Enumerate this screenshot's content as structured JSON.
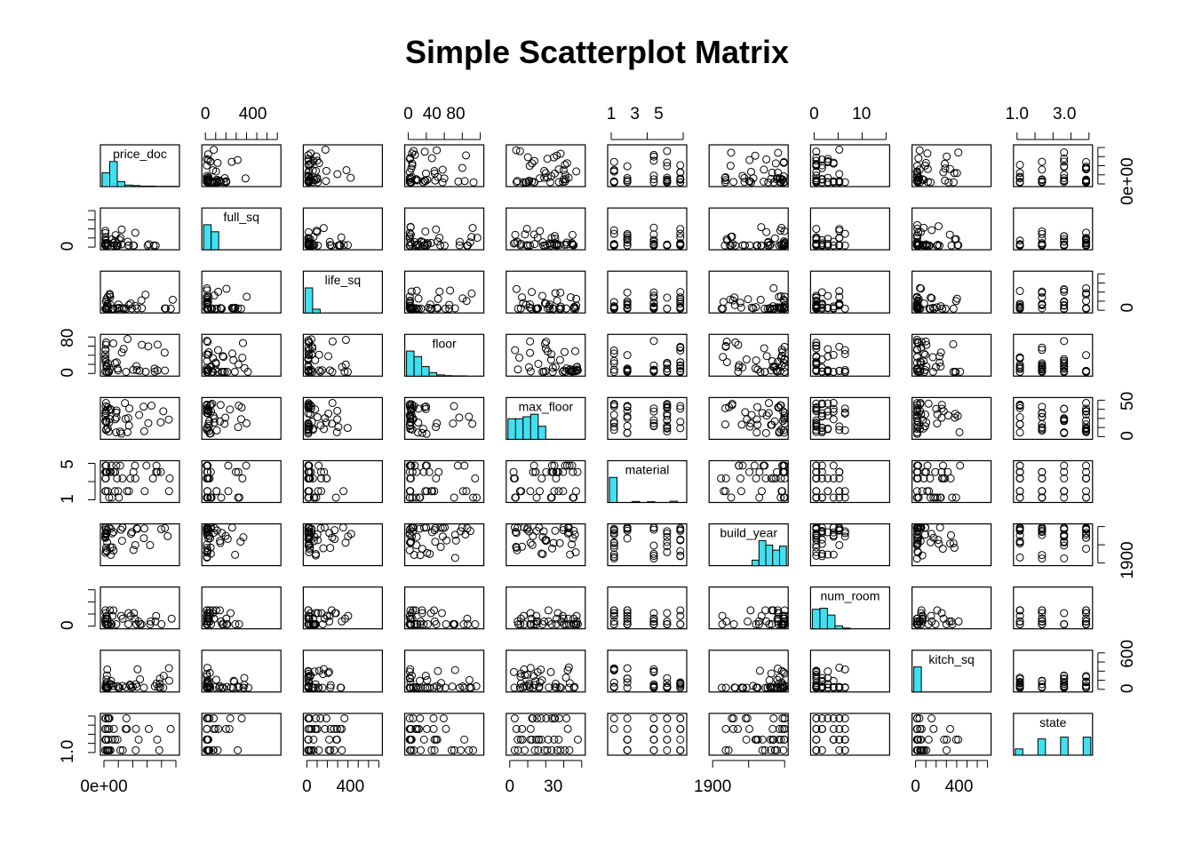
{
  "chart_data": {
    "type": "scatter-matrix",
    "title": "Simple Scatterplot Matrix",
    "colors": {
      "histogram_fill": "#40e0f0",
      "points": "#000000"
    },
    "variables": [
      {
        "name": "price_doc",
        "axis_labels": [
          "0e+00"
        ],
        "axis_tick_count": 6,
        "hist": [
          0.55,
          1.0,
          0.2,
          0.06,
          0.04,
          0.02,
          0.02,
          0.01,
          0.01,
          0.01
        ],
        "dist": "rightskew"
      },
      {
        "name": "full_sq",
        "axis_labels": [
          "0",
          "400"
        ],
        "axis_tick_count": 8,
        "hist": [
          1.0,
          0.72,
          0.0,
          0.0,
          0.0,
          0.0,
          0.0,
          0.0,
          0.0,
          0.0
        ],
        "dist": "heavyskew"
      },
      {
        "name": "life_sq",
        "axis_labels": [
          "0",
          "400"
        ],
        "axis_tick_count": 8,
        "hist": [
          1.0,
          0.15,
          0.0,
          0.0,
          0.0,
          0.0,
          0.0,
          0.0,
          0.0,
          0.0
        ],
        "dist": "heavyskew"
      },
      {
        "name": "floor",
        "axis_labels": [
          "0",
          "40",
          "80"
        ],
        "axis_tick_count": 5,
        "hist": [
          1.0,
          0.78,
          0.38,
          0.14,
          0.05,
          0.02,
          0.01,
          0.01,
          0.0,
          0.0
        ],
        "dist": "rightskew"
      },
      {
        "name": "max_floor",
        "axis_labels": [
          "0",
          "50"
        ],
        "axis_tick_count": 5,
        "hist": [
          0.82,
          0.82,
          0.9,
          1.0,
          0.52,
          0.0,
          0.0,
          0.0,
          0.0,
          0.0
        ],
        "dist": "uniform"
      },
      {
        "name": "material",
        "axis_labels": [
          "1",
          "3",
          "5"
        ],
        "axis_tick_count": 3,
        "hist": [
          1.0,
          0.0,
          0.0,
          0.04,
          0.0,
          0.03,
          0.0,
          0.0,
          0.05,
          0.0
        ],
        "dist": "discrete",
        "levels": [
          1,
          2,
          4,
          5,
          6
        ]
      },
      {
        "name": "build_year",
        "axis_labels": [
          "1900"
        ],
        "axis_tick_count": 3,
        "hist": [
          0.0,
          0.0,
          0.0,
          0.0,
          0.0,
          0.0,
          0.22,
          1.0,
          0.82,
          0.62,
          0.78
        ],
        "dist": "leftskew"
      },
      {
        "name": "num_room",
        "axis_labels": [
          "0",
          "10"
        ],
        "axis_tick_count": 4,
        "hist": [
          0.78,
          0.82,
          0.55,
          0.12,
          0.03,
          0.0,
          0.0,
          0.0,
          0.0,
          0.0
        ],
        "dist": "discrete-skew"
      },
      {
        "name": "kitch_sq",
        "axis_labels": [
          "0",
          "400",
          "0",
          "600"
        ],
        "axis_tick_count": 8,
        "hist": [
          1.0,
          0.0,
          0.0,
          0.0,
          0.0,
          0.0,
          0.0,
          0.0,
          0.0,
          0.0
        ],
        "dist": "heavyskew"
      },
      {
        "name": "state",
        "axis_labels": [
          "1.0",
          "3.0"
        ],
        "axis_tick_count": 5,
        "hist": [
          0.25,
          0.0,
          0.0,
          0.65,
          0.0,
          0.0,
          0.72,
          0.0,
          0.0,
          0.72
        ],
        "dist": "discrete",
        "levels": [
          1,
          2,
          3,
          4
        ]
      }
    ],
    "outer_axes": {
      "top": [
        {
          "column": 1,
          "labels": [
            "0",
            "400"
          ]
        },
        {
          "column": 3,
          "labels": [
            "0",
            "40",
            "80"
          ]
        },
        {
          "column": 5,
          "labels": [
            "1",
            "3",
            "5"
          ]
        },
        {
          "column": 7,
          "labels": [
            "0",
            "10"
          ]
        },
        {
          "column": 9,
          "labels": [
            "1.0",
            "3.0"
          ]
        }
      ],
      "bottom": [
        {
          "column": 0,
          "labels": [
            "0e+00"
          ]
        },
        {
          "column": 2,
          "labels": [
            "0",
            "400"
          ]
        },
        {
          "column": 4,
          "labels": [
            "0",
            "30"
          ]
        },
        {
          "column": 6,
          "labels": [
            "1900"
          ]
        },
        {
          "column": 8,
          "labels": [
            "0",
            "400"
          ]
        }
      ],
      "left": [
        {
          "row": 1,
          "labels": [
            "0"
          ]
        },
        {
          "row": 3,
          "labels": [
            "0",
            "80"
          ]
        },
        {
          "row": 5,
          "labels": [
            "1",
            "5"
          ]
        },
        {
          "row": 7,
          "labels": [
            "0"
          ]
        },
        {
          "row": 9,
          "labels": [
            "1.0"
          ]
        }
      ],
      "right": [
        {
          "row": 0,
          "labels": [
            "0e+00"
          ]
        },
        {
          "row": 2,
          "labels": [
            "0"
          ]
        },
        {
          "row": 4,
          "labels": [
            "0",
            "50"
          ]
        },
        {
          "row": 6,
          "labels": [
            "1900"
          ]
        },
        {
          "row": 8,
          "labels": [
            "0",
            "600"
          ]
        }
      ]
    }
  }
}
